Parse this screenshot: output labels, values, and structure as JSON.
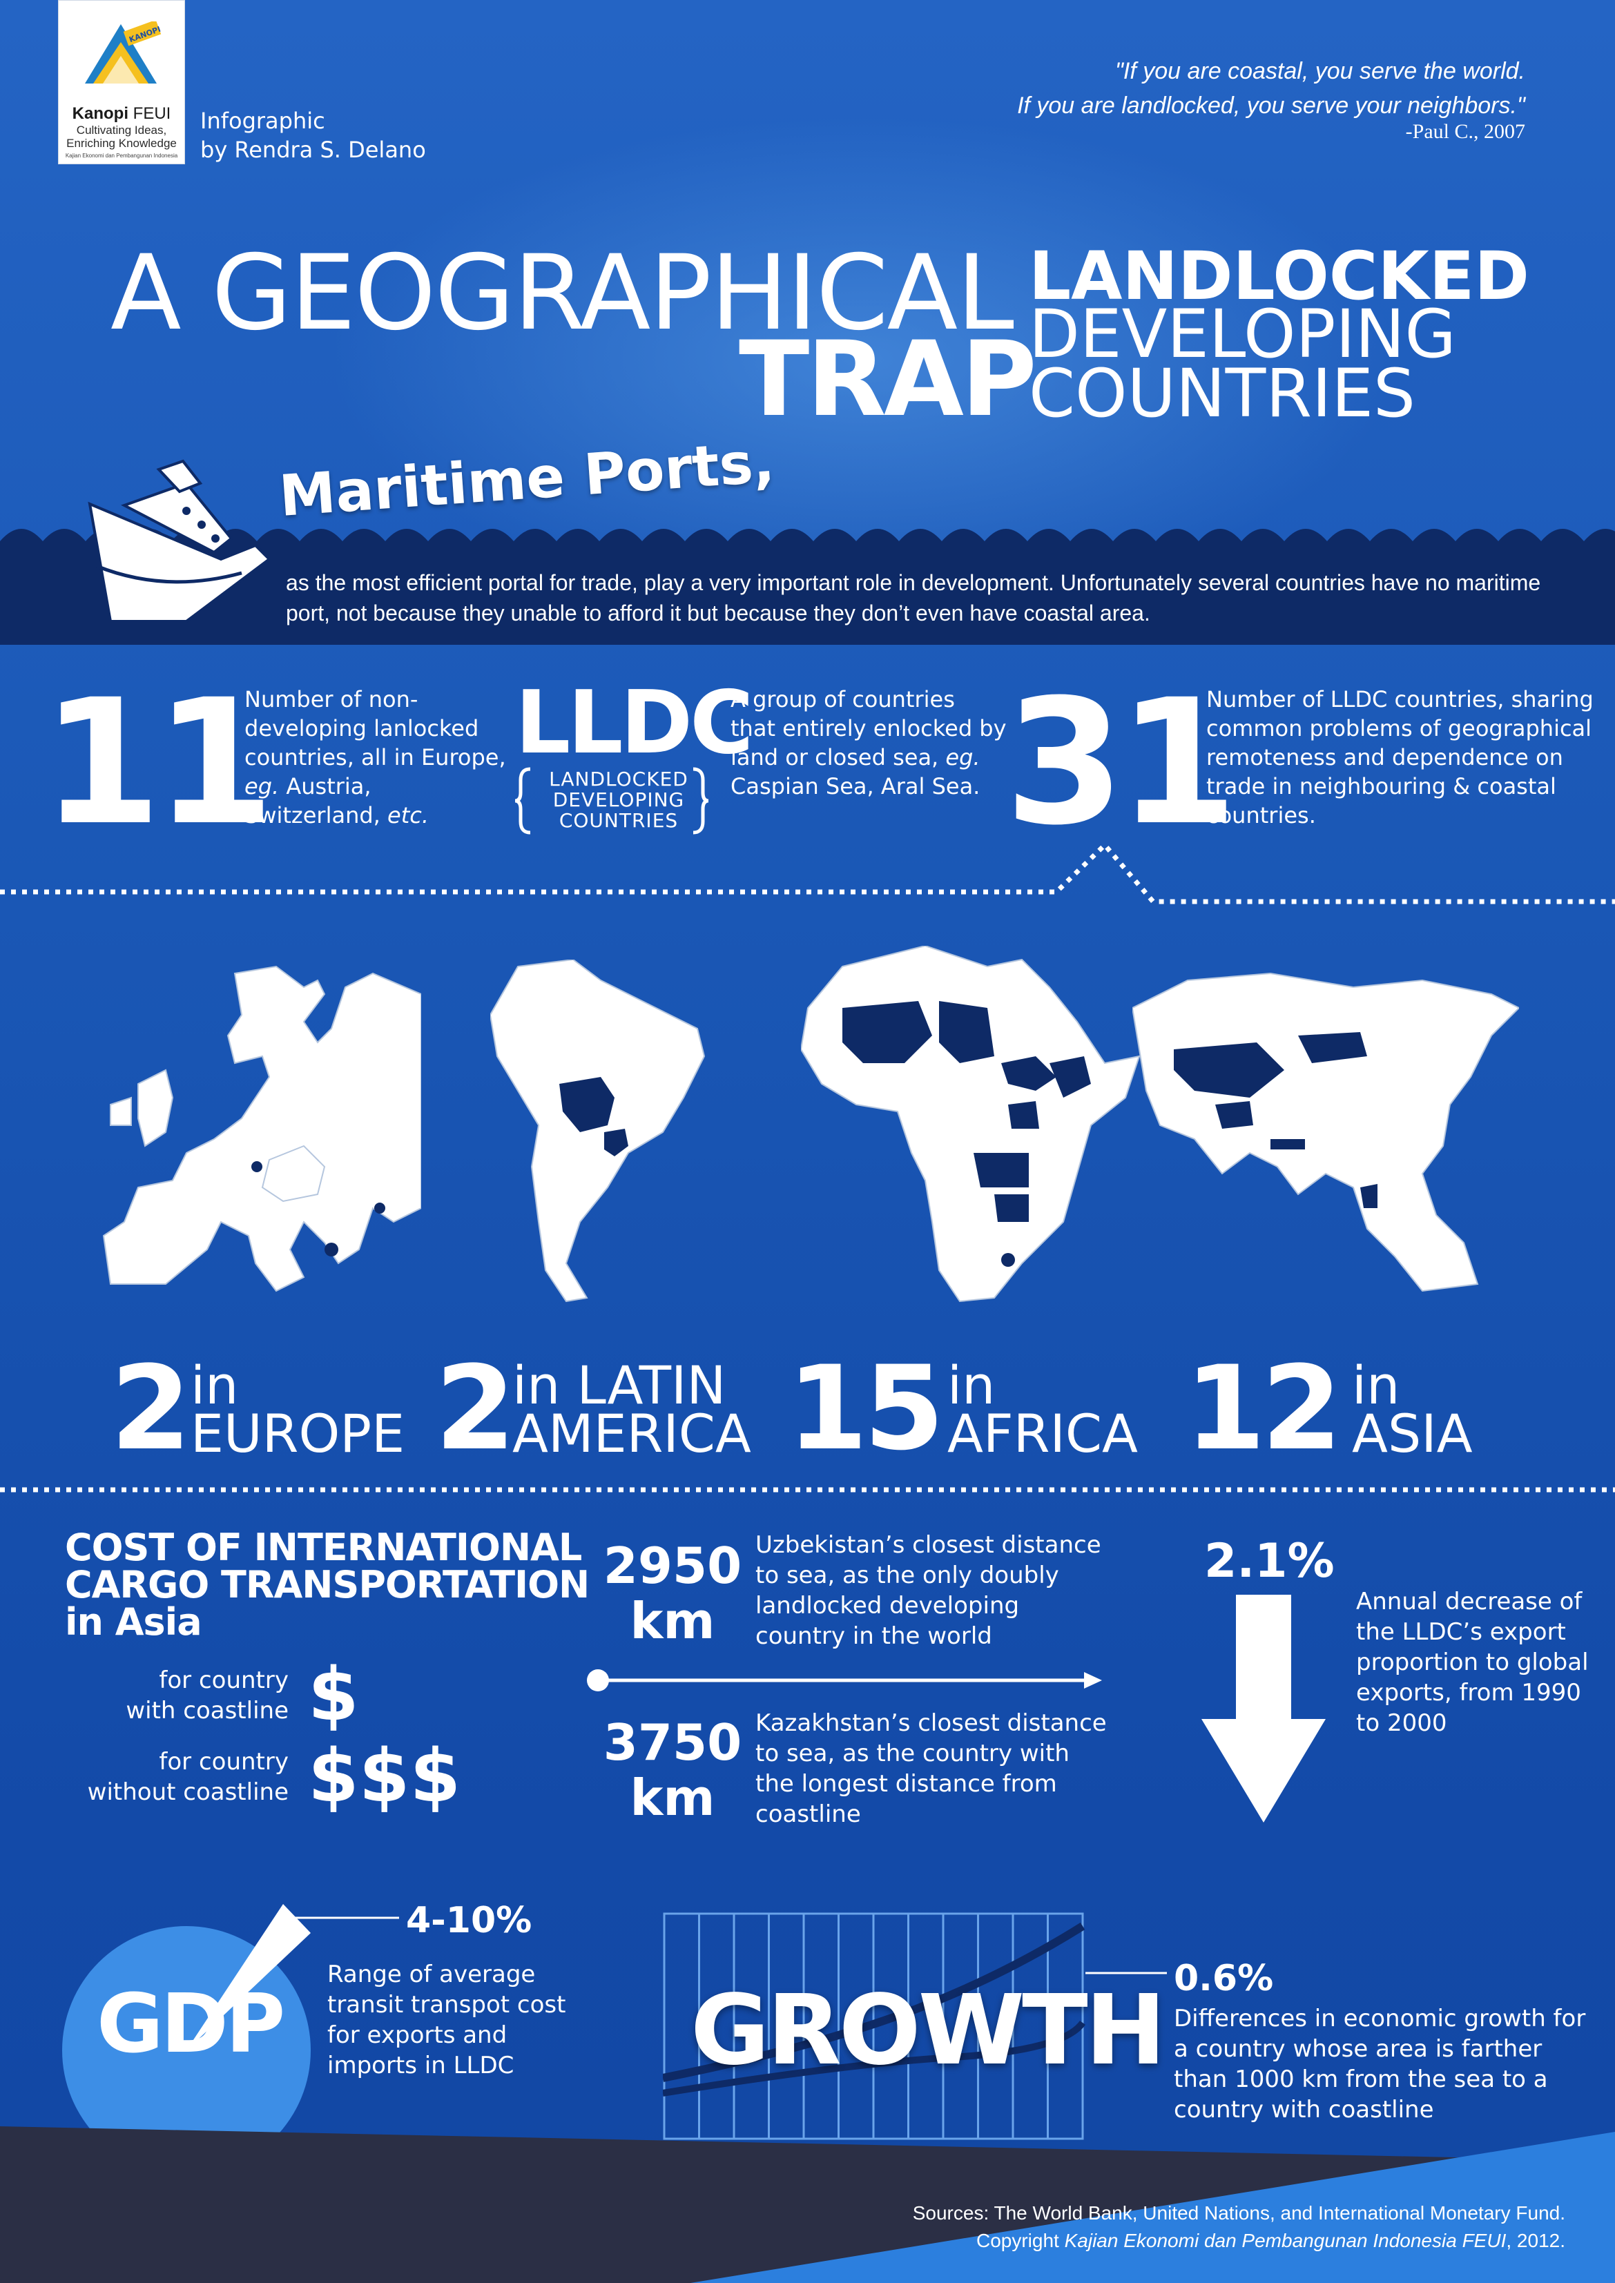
{
  "header": {
    "logo": {
      "name_bold": "Kanopi",
      "name_rest": " FEUI",
      "tag1": "Cultivating Ideas,",
      "tag2": "Enriching Knowledge",
      "sub": "Kajian Ekonomi dan Pembangunan Indonesia",
      "badge": "KANOPI"
    },
    "credit1": "Infographic",
    "credit2": "by Rendra S. Delano",
    "quote1": "\"If you are coastal, you serve the world.",
    "quote2": "If you are landlocked, you serve your neighbors.\"",
    "quote_author": "-Paul C., 2007"
  },
  "title": {
    "part1": "A GEOGRAPHICAL",
    "part2": "TRAP",
    "right1": "LANDLOCKED",
    "right2": "DEVELOPING",
    "right3": "COUNTRIES"
  },
  "maritime": {
    "heading": "Maritime Ports,",
    "text": "as the most efficient portal for trade, play a very important role in development. Unfortunately several countries have no maritime port, not because they unable to afford it but because they don’t even have coastal area."
  },
  "stats": {
    "n11": "11",
    "n11_desc_1": "Number of non-developing lanlocked countries, all in Europe, ",
    "n11_desc_eg": "eg.",
    "n11_desc_2": " Austria, Switzerland, ",
    "n11_desc_etc": "etc.",
    "lldc": "LLDC",
    "lldc_sub1": "LANDLOCKED",
    "lldc_sub2": "DEVELOPING",
    "lldc_sub3": "COUNTRIES",
    "lldc_desc_1": "A group of countries that entirely enlocked by land or closed sea, ",
    "lldc_desc_eg": "eg.",
    "lldc_desc_2": " Caspian Sea, Aral Sea.",
    "n31": "31",
    "n31_desc": "Number of LLDC countries, sharing common problems of geographical remoteness and dependence on trade in neighbouring & coastal countries."
  },
  "regions": [
    {
      "count": "2",
      "label1": "in",
      "label2": "EUROPE"
    },
    {
      "count": "2",
      "label1": "in LATIN",
      "label2": "AMERICA"
    },
    {
      "count": "15",
      "label1": "in",
      "label2": "AFRICA"
    },
    {
      "count": "12",
      "label1": "in",
      "label2": "ASIA"
    }
  ],
  "cost": {
    "title1": "COST OF INTERNATIONAL",
    "title2": "CARGO TRANSPORTATION",
    "title3": "in Asia",
    "coast_label1": "for country",
    "coast_label2": "with coastline",
    "coast_value": "$",
    "nocoast_label1": "for country",
    "nocoast_label2": "without coastline",
    "nocoast_value": "$$$"
  },
  "distance": {
    "uzb_value": "2950",
    "uzb_unit": "km",
    "uzb_desc": "Uzbekistan’s closest distance to sea, as the only doubly landlocked developing country in the world",
    "kaz_value": "3750",
    "kaz_unit": "km",
    "kaz_desc": "Kazakhstan’s closest distance to sea, as the country with the longest distance from coastline"
  },
  "export": {
    "value": "2.1%",
    "desc": "Annual decrease of the LLDC’s export proportion to global exports, from 1990 to 2000"
  },
  "gdp": {
    "word": "GDP",
    "value": "4-10%",
    "desc": "Range of average transit transpot cost for exports and imports in LLDC"
  },
  "growth": {
    "word": "GROWTH",
    "value": "0.6%",
    "desc": "Differences in economic growth for a country whose area is farther than 1000 km from the sea to a country with coastline"
  },
  "footer": {
    "sources": "Sources: The World Bank, United Nations, and International Monetary Fund.",
    "copyright_1": "Copyright ",
    "copyright_it": "Kajian Ekonomi dan Pembangunan Indonesia FEUI",
    "copyright_2": ", 2012."
  },
  "colors": {
    "background": "#1b5bb9",
    "dark_navy": "#0e2a66",
    "landlocked": "#0e2a66",
    "map_land": "#ffffff",
    "gdp_circle": "#3d8ee6"
  }
}
